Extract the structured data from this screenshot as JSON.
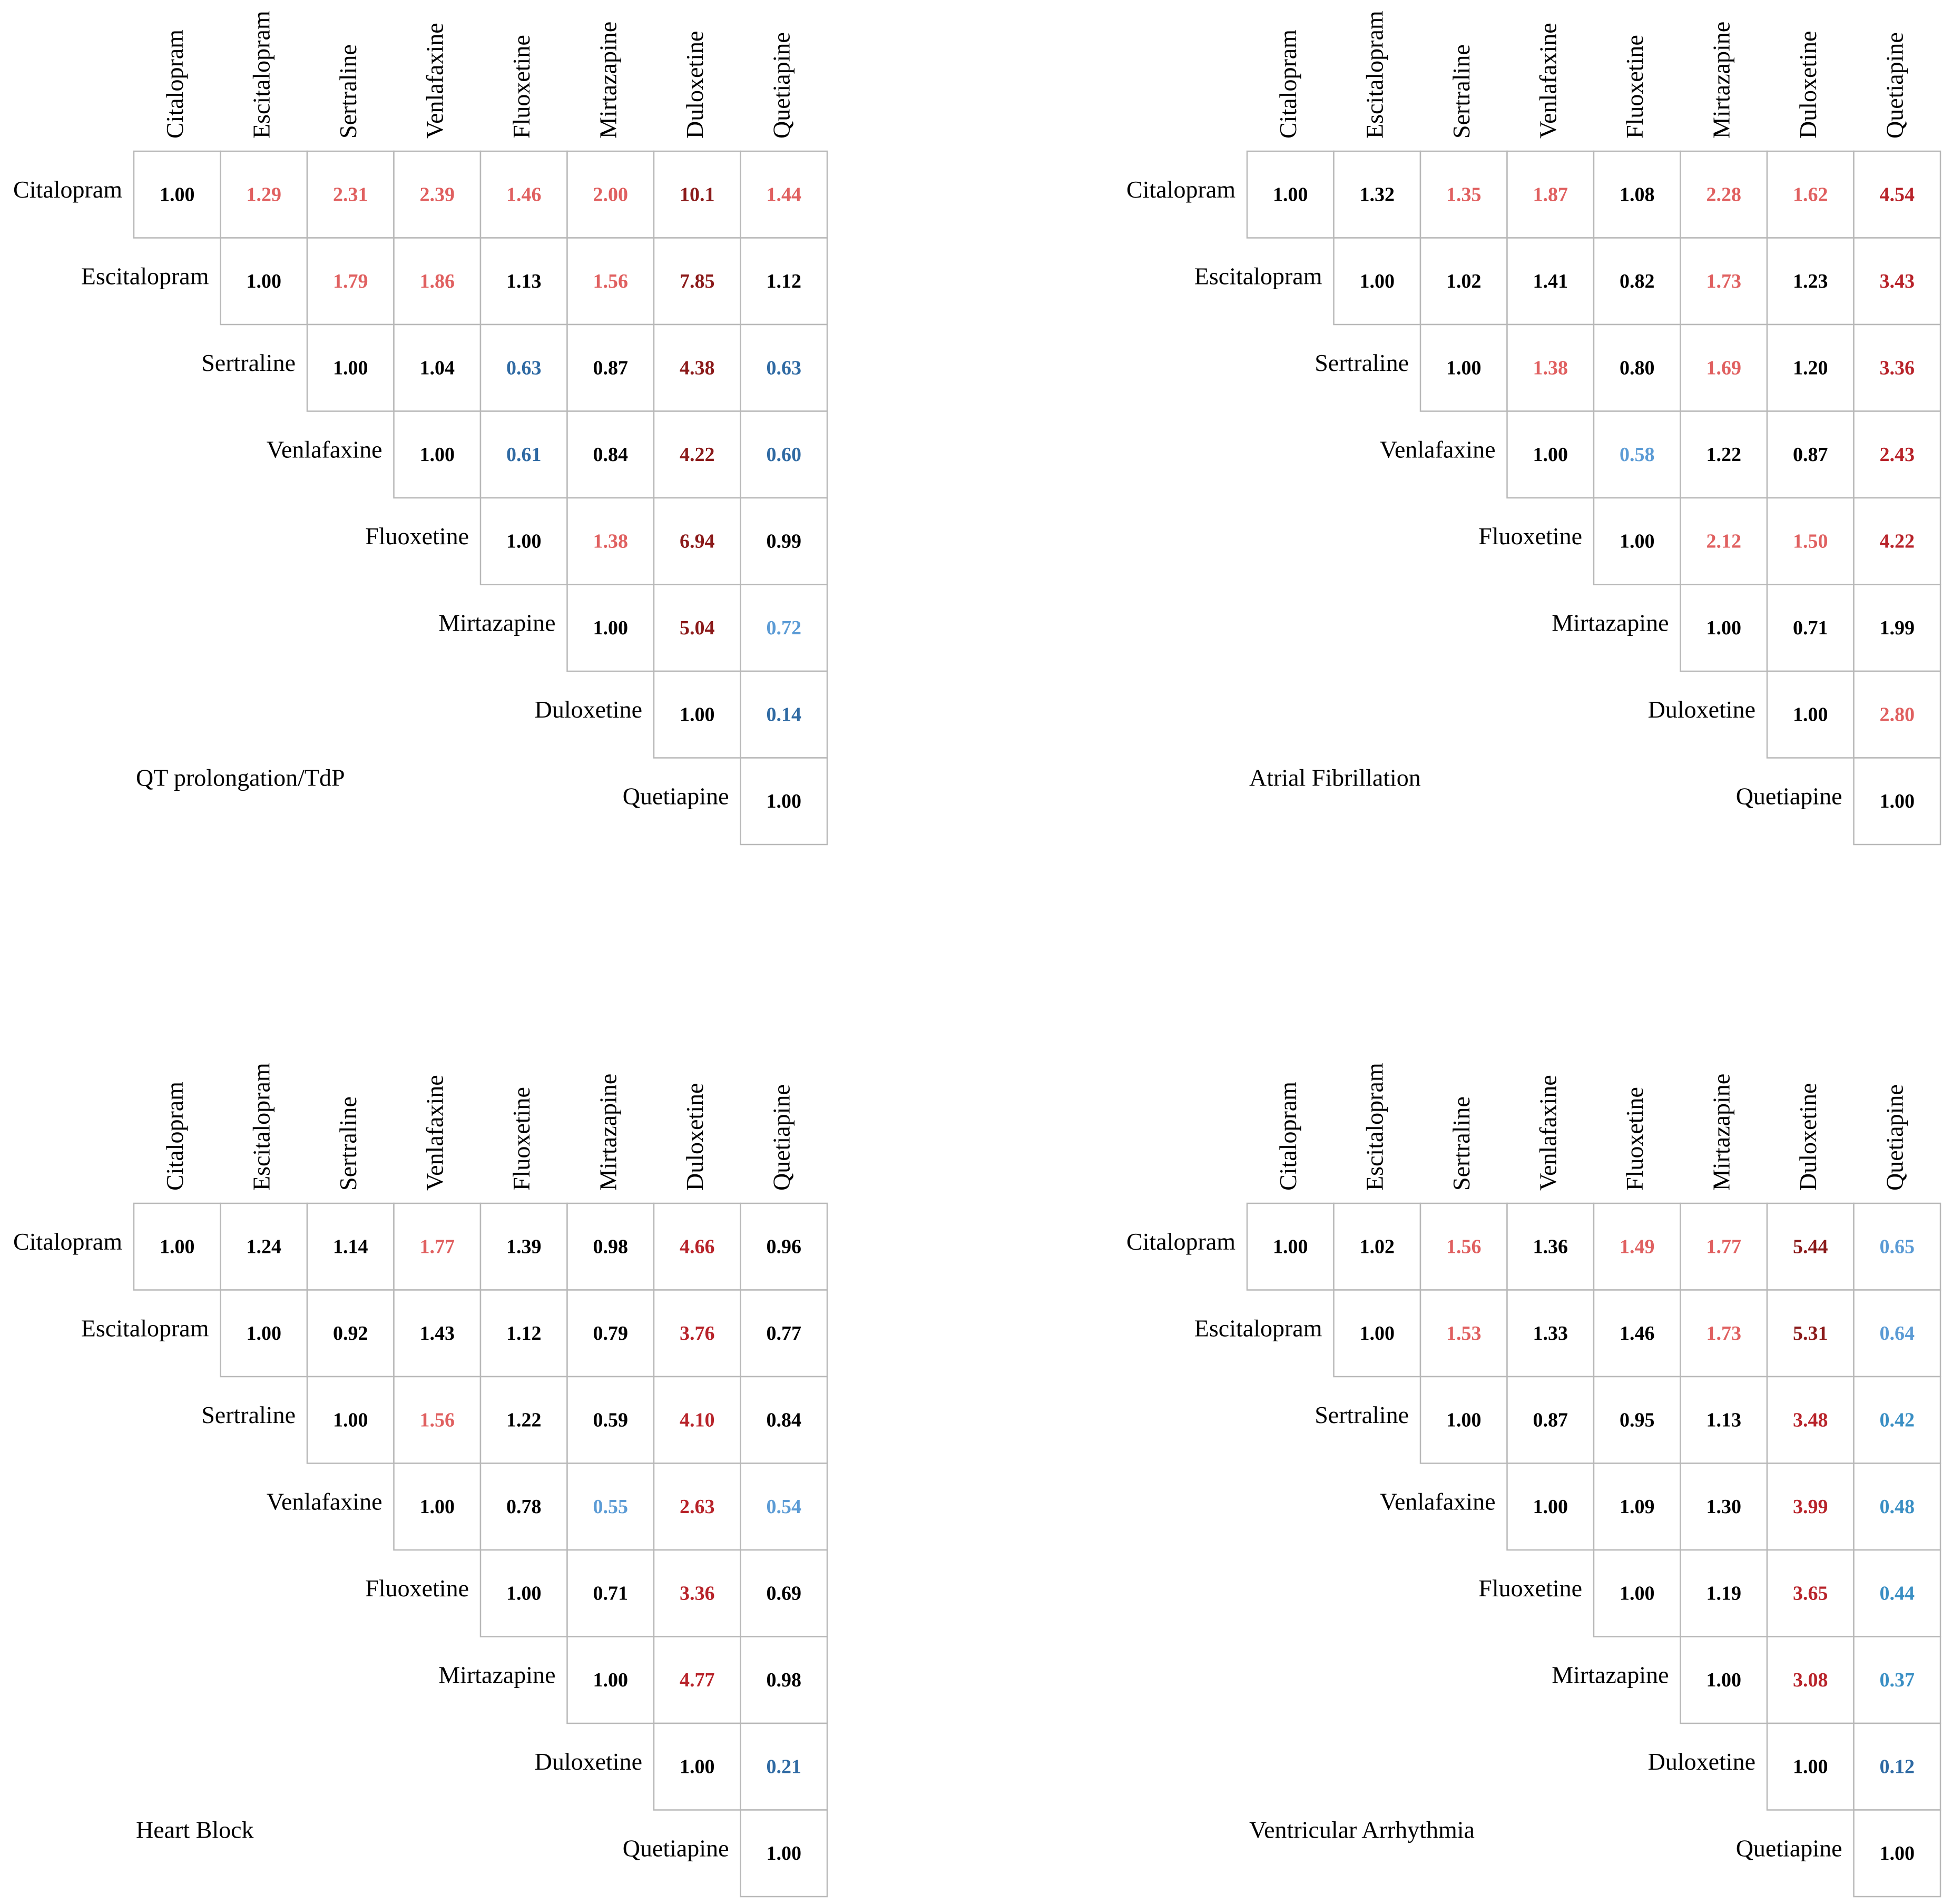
{
  "panels": [
    {
      "title": "QT prolongation/TdP",
      "drugs": [
        "Citalopram",
        "Escitalopram",
        "Sertraline",
        "Venlafaxine",
        "Fluoxetine",
        "Mirtazapine",
        "Duloxetine",
        "Quetiapine"
      ],
      "rows": [
        [
          {
            "text": "1.00",
            "color": "#000000"
          },
          {
            "text": "1.29",
            "color": "#e06060"
          },
          {
            "text": "2.31",
            "color": "#e06060"
          },
          {
            "text": "2.39",
            "color": "#e06060"
          },
          {
            "text": "1.46",
            "color": "#e06060"
          },
          {
            "text": "2.00",
            "color": "#e06060"
          },
          {
            "text": "10.1",
            "color": "#8b1a1a"
          },
          {
            "text": "1.44",
            "color": "#e06060"
          }
        ],
        [
          {
            "text": "1.00",
            "color": "#000000"
          },
          {
            "text": "1.79",
            "color": "#e06060"
          },
          {
            "text": "1.86",
            "color": "#e06060"
          },
          {
            "text": "1.13",
            "color": "#000000"
          },
          {
            "text": "1.56",
            "color": "#e06060"
          },
          {
            "text": "7.85",
            "color": "#8b1a1a"
          },
          {
            "text": "1.12",
            "color": "#000000"
          }
        ],
        [
          {
            "text": "1.00",
            "color": "#000000"
          },
          {
            "text": "1.04",
            "color": "#000000"
          },
          {
            "text": "0.63",
            "color": "#2f6aa3"
          },
          {
            "text": "0.87",
            "color": "#000000"
          },
          {
            "text": "4.38",
            "color": "#8b1a1a"
          },
          {
            "text": "0.63",
            "color": "#2f6aa3"
          }
        ],
        [
          {
            "text": "1.00",
            "color": "#000000"
          },
          {
            "text": "0.61",
            "color": "#2f6aa3"
          },
          {
            "text": "0.84",
            "color": "#000000"
          },
          {
            "text": "4.22",
            "color": "#8b1a1a"
          },
          {
            "text": "0.60",
            "color": "#2f6aa3"
          }
        ],
        [
          {
            "text": "1.00",
            "color": "#000000"
          },
          {
            "text": "1.38",
            "color": "#e06060"
          },
          {
            "text": "6.94",
            "color": "#8b1a1a"
          },
          {
            "text": "0.99",
            "color": "#000000"
          }
        ],
        [
          {
            "text": "1.00",
            "color": "#000000"
          },
          {
            "text": "5.04",
            "color": "#8b1a1a"
          },
          {
            "text": "0.72",
            "color": "#5b9bd5"
          }
        ],
        [
          {
            "text": "1.00",
            "color": "#000000"
          },
          {
            "text": "0.14",
            "color": "#2f6aa3"
          }
        ],
        [
          {
            "text": "1.00",
            "color": "#000000"
          }
        ]
      ]
    },
    {
      "title": "Atrial Fibrillation",
      "drugs": [
        "Citalopram",
        "Escitalopram",
        "Sertraline",
        "Venlafaxine",
        "Fluoxetine",
        "Mirtazapine",
        "Duloxetine",
        "Quetiapine"
      ],
      "rows": [
        [
          {
            "text": "1.00",
            "color": "#000000"
          },
          {
            "text": "1.32",
            "color": "#000000"
          },
          {
            "text": "1.35",
            "color": "#e06060"
          },
          {
            "text": "1.87",
            "color": "#e06060"
          },
          {
            "text": "1.08",
            "color": "#000000"
          },
          {
            "text": "2.28",
            "color": "#e06060"
          },
          {
            "text": "1.62",
            "color": "#e06060"
          },
          {
            "text": "4.54",
            "color": "#b8232a"
          }
        ],
        [
          {
            "text": "1.00",
            "color": "#000000"
          },
          {
            "text": "1.02",
            "color": "#000000"
          },
          {
            "text": "1.41",
            "color": "#000000"
          },
          {
            "text": "0.82",
            "color": "#000000"
          },
          {
            "text": "1.73",
            "color": "#e06060"
          },
          {
            "text": "1.23",
            "color": "#000000"
          },
          {
            "text": "3.43",
            "color": "#b8232a"
          }
        ],
        [
          {
            "text": "1.00",
            "color": "#000000"
          },
          {
            "text": "1.38",
            "color": "#e06060"
          },
          {
            "text": "0.80",
            "color": "#000000"
          },
          {
            "text": "1.69",
            "color": "#e06060"
          },
          {
            "text": "1.20",
            "color": "#000000"
          },
          {
            "text": "3.36",
            "color": "#b8232a"
          }
        ],
        [
          {
            "text": "1.00",
            "color": "#000000"
          },
          {
            "text": "0.58",
            "color": "#5b9bd5"
          },
          {
            "text": "1.22",
            "color": "#000000"
          },
          {
            "text": "0.87",
            "color": "#000000"
          },
          {
            "text": "2.43",
            "color": "#b8232a"
          }
        ],
        [
          {
            "text": "1.00",
            "color": "#000000"
          },
          {
            "text": "2.12",
            "color": "#e06060"
          },
          {
            "text": "1.50",
            "color": "#e06060"
          },
          {
            "text": "4.22",
            "color": "#b8232a"
          }
        ],
        [
          {
            "text": "1.00",
            "color": "#000000"
          },
          {
            "text": "0.71",
            "color": "#000000"
          },
          {
            "text": "1.99",
            "color": "#000000"
          }
        ],
        [
          {
            "text": "1.00",
            "color": "#000000"
          },
          {
            "text": "2.80",
            "color": "#e06060"
          }
        ],
        [
          {
            "text": "1.00",
            "color": "#000000"
          }
        ]
      ]
    },
    {
      "title": "Heart Block",
      "drugs": [
        "Citalopram",
        "Escitalopram",
        "Sertraline",
        "Venlafaxine",
        "Fluoxetine",
        "Mirtazapine",
        "Duloxetine",
        "Quetiapine"
      ],
      "rows": [
        [
          {
            "text": "1.00",
            "color": "#000000"
          },
          {
            "text": "1.24",
            "color": "#000000"
          },
          {
            "text": "1.14",
            "color": "#000000"
          },
          {
            "text": "1.77",
            "color": "#e06060"
          },
          {
            "text": "1.39",
            "color": "#000000"
          },
          {
            "text": "0.98",
            "color": "#000000"
          },
          {
            "text": "4.66",
            "color": "#b8232a"
          },
          {
            "text": "0.96",
            "color": "#000000"
          }
        ],
        [
          {
            "text": "1.00",
            "color": "#000000"
          },
          {
            "text": "0.92",
            "color": "#000000"
          },
          {
            "text": "1.43",
            "color": "#000000"
          },
          {
            "text": "1.12",
            "color": "#000000"
          },
          {
            "text": "0.79",
            "color": "#000000"
          },
          {
            "text": "3.76",
            "color": "#b8232a"
          },
          {
            "text": "0.77",
            "color": "#000000"
          }
        ],
        [
          {
            "text": "1.00",
            "color": "#000000"
          },
          {
            "text": "1.56",
            "color": "#e06060"
          },
          {
            "text": "1.22",
            "color": "#000000"
          },
          {
            "text": "0.59",
            "color": "#000000"
          },
          {
            "text": "4.10",
            "color": "#b8232a"
          },
          {
            "text": "0.84",
            "color": "#000000"
          }
        ],
        [
          {
            "text": "1.00",
            "color": "#000000"
          },
          {
            "text": "0.78",
            "color": "#000000"
          },
          {
            "text": "0.55",
            "color": "#5b9bd5"
          },
          {
            "text": "2.63",
            "color": "#b8232a"
          },
          {
            "text": "0.54",
            "color": "#5b9bd5"
          }
        ],
        [
          {
            "text": "1.00",
            "color": "#000000"
          },
          {
            "text": "0.71",
            "color": "#000000"
          },
          {
            "text": "3.36",
            "color": "#b8232a"
          },
          {
            "text": "0.69",
            "color": "#000000"
          }
        ],
        [
          {
            "text": "1.00",
            "color": "#000000"
          },
          {
            "text": "4.77",
            "color": "#b8232a"
          },
          {
            "text": "0.98",
            "color": "#000000"
          }
        ],
        [
          {
            "text": "1.00",
            "color": "#000000"
          },
          {
            "text": "0.21",
            "color": "#2f6aa3"
          }
        ],
        [
          {
            "text": "1.00",
            "color": "#000000"
          }
        ]
      ]
    },
    {
      "title": "Ventricular Arrhythmia",
      "drugs": [
        "Citalopram",
        "Escitalopram",
        "Sertraline",
        "Venlafaxine",
        "Fluoxetine",
        "Mirtazapine",
        "Duloxetine",
        "Quetiapine"
      ],
      "rows": [
        [
          {
            "text": "1.00",
            "color": "#000000"
          },
          {
            "text": "1.02",
            "color": "#000000"
          },
          {
            "text": "1.56",
            "color": "#e06060"
          },
          {
            "text": "1.36",
            "color": "#000000"
          },
          {
            "text": "1.49",
            "color": "#e06060"
          },
          {
            "text": "1.77",
            "color": "#e06060"
          },
          {
            "text": "5.44",
            "color": "#8b1a1a"
          },
          {
            "text": "0.65",
            "color": "#5b9bd5"
          }
        ],
        [
          {
            "text": "1.00",
            "color": "#000000"
          },
          {
            "text": "1.53",
            "color": "#e06060"
          },
          {
            "text": "1.33",
            "color": "#000000"
          },
          {
            "text": "1.46",
            "color": "#000000"
          },
          {
            "text": "1.73",
            "color": "#e06060"
          },
          {
            "text": "5.31",
            "color": "#8b1a1a"
          },
          {
            "text": "0.64",
            "color": "#5b9bd5"
          }
        ],
        [
          {
            "text": "1.00",
            "color": "#000000"
          },
          {
            "text": "0.87",
            "color": "#000000"
          },
          {
            "text": "0.95",
            "color": "#000000"
          },
          {
            "text": "1.13",
            "color": "#000000"
          },
          {
            "text": "3.48",
            "color": "#b8232a"
          },
          {
            "text": "0.42",
            "color": "#3a8fc4"
          }
        ],
        [
          {
            "text": "1.00",
            "color": "#000000"
          },
          {
            "text": "1.09",
            "color": "#000000"
          },
          {
            "text": "1.30",
            "color": "#000000"
          },
          {
            "text": "3.99",
            "color": "#b8232a"
          },
          {
            "text": "0.48",
            "color": "#3a8fc4"
          }
        ],
        [
          {
            "text": "1.00",
            "color": "#000000"
          },
          {
            "text": "1.19",
            "color": "#000000"
          },
          {
            "text": "3.65",
            "color": "#b8232a"
          },
          {
            "text": "0.44",
            "color": "#3a8fc4"
          }
        ],
        [
          {
            "text": "1.00",
            "color": "#000000"
          },
          {
            "text": "3.08",
            "color": "#b8232a"
          },
          {
            "text": "0.37",
            "color": "#3a8fc4"
          }
        ],
        [
          {
            "text": "1.00",
            "color": "#000000"
          },
          {
            "text": "0.12",
            "color": "#2f6aa3"
          }
        ],
        [
          {
            "text": "1.00",
            "color": "#000000"
          }
        ]
      ]
    }
  ]
}
